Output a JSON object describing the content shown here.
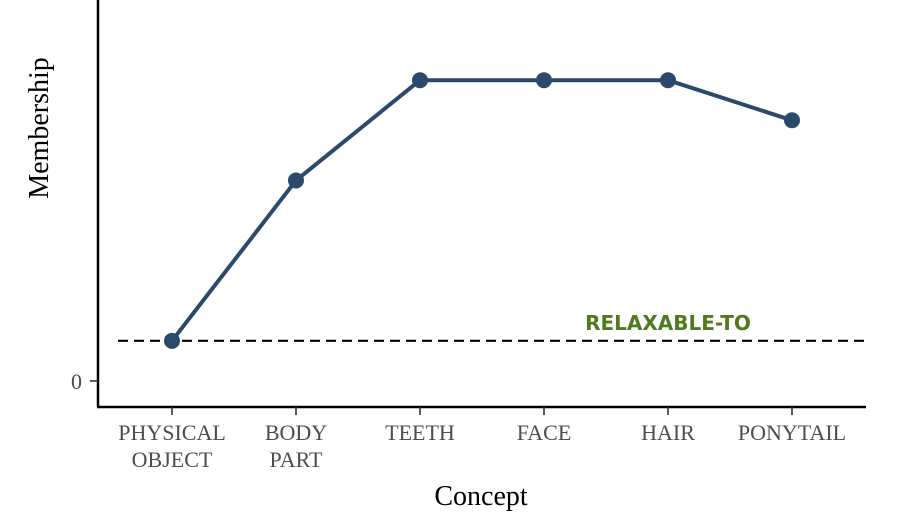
{
  "chart_data": {
    "type": "line",
    "title": "",
    "xlabel": "Concept",
    "ylabel": "Membership",
    "categories": [
      [
        "PHYSICAL",
        "OBJECT"
      ],
      [
        "BODY",
        "PART"
      ],
      [
        "TEETH"
      ],
      [
        "FACE"
      ],
      [
        "HAIR"
      ],
      [
        "PONYTAIL"
      ]
    ],
    "series": [
      {
        "values": [
          0.1,
          0.5,
          0.75,
          0.75,
          0.75,
          0.65
        ],
        "color": "#2b4a6b"
      }
    ],
    "y_ticks": [
      {
        "value": 0,
        "label": "0"
      }
    ],
    "ylim": [
      -0.065,
      0.95
    ],
    "threshold": {
      "value": 0.1,
      "label": "RELAXABLE-TO",
      "style": "dashed",
      "color": "#000000",
      "label_color": "#4f7a1e"
    },
    "grid": false,
    "legend": "none"
  }
}
